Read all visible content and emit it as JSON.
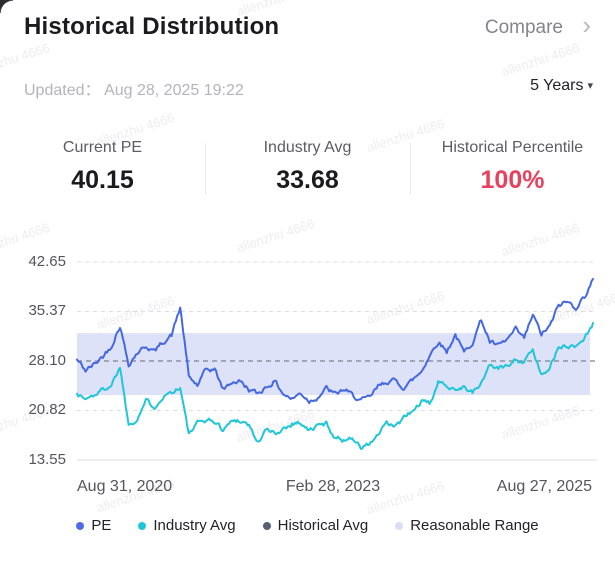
{
  "watermark": {
    "text": "allenzhu 4666"
  },
  "header": {
    "title": "Historical Distribution",
    "compare_label": "Compare",
    "chevron": "›"
  },
  "updated": {
    "label": "Updated：",
    "value": "Aug 28, 2025 19:22"
  },
  "range_selector": {
    "value": "5 Years",
    "caret": "▾"
  },
  "stats": {
    "items": [
      {
        "label": "Current PE",
        "value": "40.15",
        "color": "#1b1b1d"
      },
      {
        "label": "Industry Avg",
        "value": "33.68",
        "color": "#1b1b1d"
      },
      {
        "label": "Historical Percentile",
        "value": "100%",
        "color": "#e8415e"
      }
    ]
  },
  "chart_data": {
    "type": "line",
    "title": "PE historical distribution, 5 years",
    "x_axis": {
      "labels": [
        "Aug 31, 2020",
        "Feb 28, 2023",
        "Aug 27, 2025"
      ],
      "start": "Aug 31, 2020",
      "end": "Aug 27, 2025",
      "sampling": "monthly estimates, 61 points"
    },
    "y_axis": {
      "tick_labels": [
        "42.65",
        "35.37",
        "28.10",
        "20.82",
        "13.55"
      ],
      "ticks": [
        42.65,
        35.37,
        28.1,
        20.82,
        13.55
      ],
      "range": [
        13.55,
        42.65
      ],
      "gridlines": "dashed"
    },
    "historical_avg": 28.1,
    "reasonable_range": [
      23.1,
      32.2
    ],
    "band_color": "#dde2f9",
    "avg_line_color": "#7c8290",
    "series": [
      {
        "name": "PE",
        "color": "#4468e2",
        "values": [
          28.3,
          26.7,
          27.6,
          28.8,
          30.3,
          33.3,
          27.6,
          29.3,
          30.3,
          29.5,
          30.9,
          31.9,
          36.0,
          25.8,
          24.5,
          26.8,
          26.9,
          23.9,
          25.0,
          25.1,
          23.9,
          23.3,
          24.3,
          25.1,
          23.3,
          22.5,
          23.4,
          22.2,
          22.8,
          24.1,
          23.2,
          23.9,
          23.1,
          22.3,
          22.7,
          24.3,
          25.1,
          25.2,
          24.2,
          25.3,
          26.5,
          28.9,
          31.0,
          29.5,
          32.0,
          29.3,
          30.9,
          34.2,
          30.9,
          30.3,
          31.2,
          32.7,
          31.4,
          34.9,
          32.0,
          33.2,
          36.3,
          36.8,
          36.0,
          37.5,
          40.15
        ]
      },
      {
        "name": "Industry Avg",
        "color": "#1fc6d8",
        "values": [
          23.3,
          22.5,
          23.1,
          23.9,
          24.6,
          27.3,
          18.8,
          19.6,
          22.3,
          21.4,
          22.9,
          23.6,
          24.2,
          17.3,
          18.9,
          19.5,
          19.2,
          18.0,
          19.3,
          19.4,
          18.7,
          16.1,
          18.0,
          17.4,
          18.2,
          18.9,
          19.1,
          17.8,
          18.6,
          18.9,
          16.9,
          16.4,
          17.0,
          15.3,
          15.9,
          17.2,
          18.9,
          18.4,
          19.8,
          20.6,
          22.1,
          21.8,
          24.9,
          24.6,
          24.0,
          24.3,
          23.4,
          24.8,
          27.6,
          27.0,
          27.4,
          28.5,
          27.8,
          29.8,
          26.0,
          27.4,
          29.9,
          30.4,
          30.2,
          31.5,
          33.68
        ]
      }
    ]
  },
  "legend": {
    "items": [
      {
        "label": "PE",
        "color": "#4e6ce6"
      },
      {
        "label": "Industry Avg",
        "color": "#1fc6d8"
      },
      {
        "label": "Historical Avg",
        "color": "#566070"
      },
      {
        "label": "Reasonable Range",
        "color": "#d9def6"
      }
    ]
  }
}
